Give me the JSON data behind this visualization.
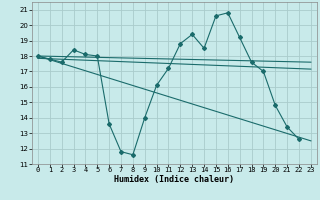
{
  "xlabel": "Humidex (Indice chaleur)",
  "bg_color": "#c8eaea",
  "grid_color": "#aacccc",
  "line_color": "#1a6b6b",
  "xlim": [
    -0.5,
    23.5
  ],
  "ylim": [
    11,
    21.5
  ],
  "xticks": [
    0,
    1,
    2,
    3,
    4,
    5,
    6,
    7,
    8,
    9,
    10,
    11,
    12,
    13,
    14,
    15,
    16,
    17,
    18,
    19,
    20,
    21,
    22,
    23
  ],
  "yticks": [
    11,
    12,
    13,
    14,
    15,
    16,
    17,
    18,
    19,
    20,
    21
  ],
  "series1_x": [
    0,
    1,
    2,
    3,
    4,
    5,
    6,
    7,
    8,
    9,
    10,
    11,
    12,
    13,
    14,
    15,
    16,
    17,
    18,
    19,
    20,
    21,
    22
  ],
  "series1_y": [
    18.0,
    17.8,
    17.6,
    18.4,
    18.1,
    18.0,
    13.6,
    11.8,
    11.6,
    14.0,
    16.1,
    17.2,
    18.8,
    19.4,
    18.5,
    20.6,
    20.8,
    19.2,
    17.6,
    17.0,
    14.8,
    13.4,
    12.6
  ],
  "series2_x": [
    0,
    23
  ],
  "series2_y": [
    18.0,
    17.6
  ],
  "series3_x": [
    0,
    23
  ],
  "series3_y": [
    17.85,
    17.15
  ],
  "series4_x": [
    0,
    23
  ],
  "series4_y": [
    18.0,
    12.5
  ]
}
